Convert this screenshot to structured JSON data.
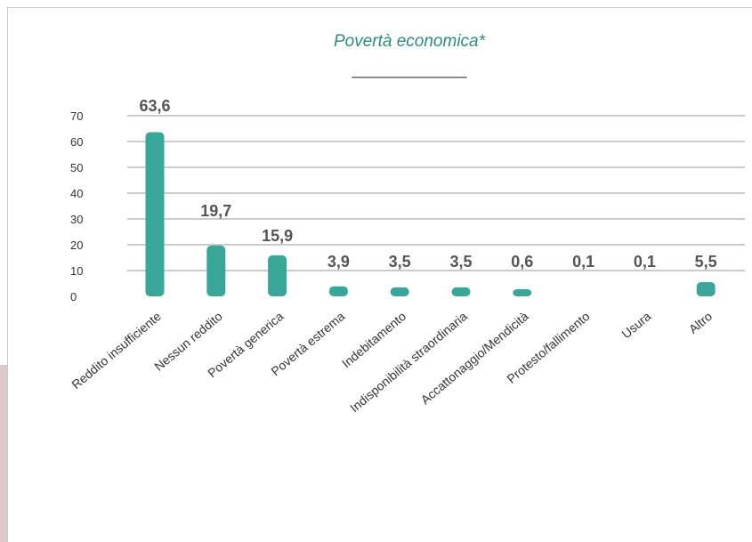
{
  "chart_data": {
    "type": "bar",
    "title": "Povertà economica*",
    "categories": [
      "Reddito insufficiente",
      "Nessun reddito",
      "Povertà generica",
      "Povertà estrema",
      "Indebitamento",
      "Indisponibilità straordinaria",
      "Accattonaggio/Mendicità",
      "Protesto/fallimento",
      "Usura",
      "Altro"
    ],
    "values": [
      63.6,
      19.7,
      15.9,
      3.9,
      3.5,
      3.5,
      0.6,
      0.1,
      0.1,
      5.5
    ],
    "value_labels": [
      "63,6",
      "19,7",
      "15,9",
      "3,9",
      "3,5",
      "3,5",
      "0,6",
      "0,1",
      "0,1",
      "5,5"
    ],
    "yticks": [
      "0",
      "10",
      "20",
      "30",
      "40",
      "50",
      "60",
      "70"
    ],
    "ylim": [
      0,
      70
    ],
    "grid": true,
    "bar_color": "#3aa699",
    "title_color": "#2f8a7c"
  }
}
